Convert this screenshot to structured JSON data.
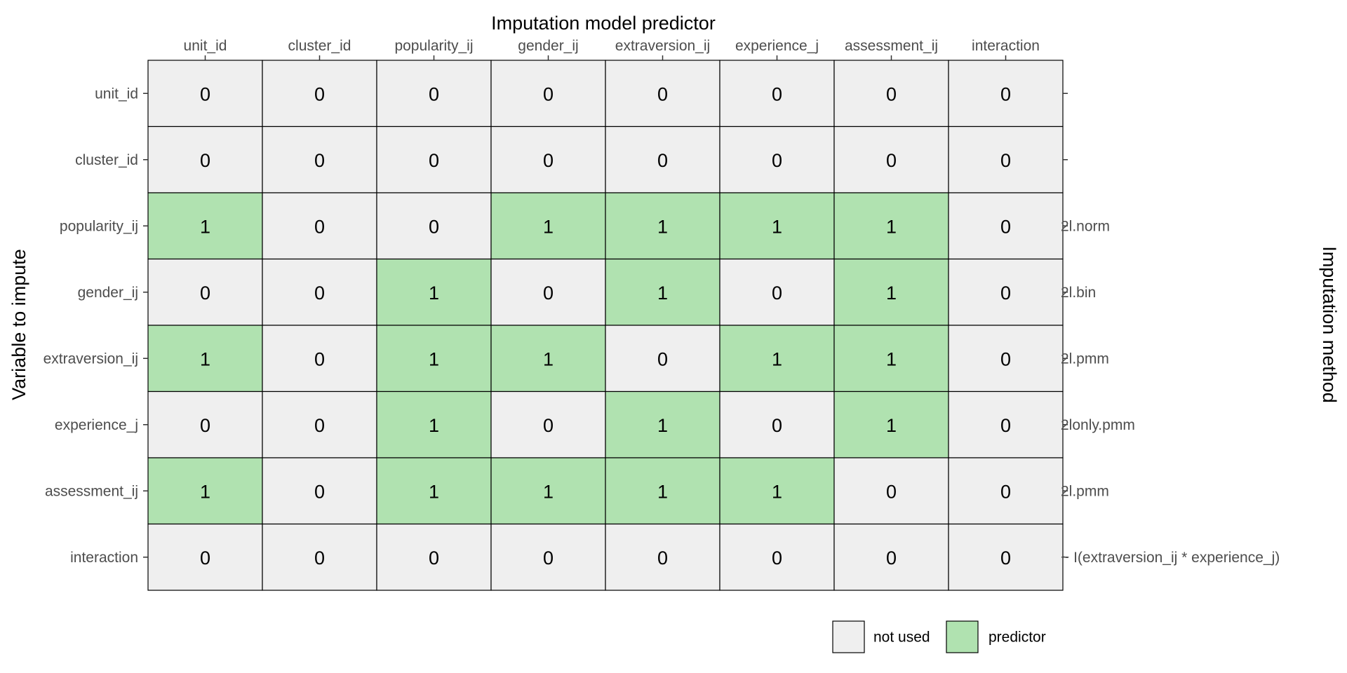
{
  "chart_data": {
    "type": "heatmap",
    "xlabel": "Imputation model predictor",
    "ylabel": "Variable to impute",
    "right_label": "Imputation method",
    "columns": [
      "unit_id",
      "cluster_id",
      "popularity_ij",
      "gender_ij",
      "extraversion_ij",
      "experience_j",
      "assessment_ij",
      "interaction"
    ],
    "rows": [
      "unit_id",
      "cluster_id",
      "popularity_ij",
      "gender_ij",
      "extraversion_ij",
      "experience_j",
      "assessment_ij",
      "interaction"
    ],
    "methods": [
      "",
      "",
      "2l.norm",
      "2l.bin",
      "2l.pmm",
      "2lonly.pmm",
      "2l.pmm",
      "~ I(extraversion_ij * experience_j)"
    ],
    "matrix": [
      [
        0,
        0,
        0,
        0,
        0,
        0,
        0,
        0
      ],
      [
        0,
        0,
        0,
        0,
        0,
        0,
        0,
        0
      ],
      [
        1,
        0,
        0,
        1,
        1,
        1,
        1,
        0
      ],
      [
        0,
        0,
        1,
        0,
        1,
        0,
        1,
        0
      ],
      [
        1,
        0,
        1,
        1,
        0,
        1,
        1,
        0
      ],
      [
        0,
        0,
        1,
        0,
        1,
        0,
        1,
        0
      ],
      [
        1,
        0,
        1,
        1,
        1,
        1,
        0,
        0
      ],
      [
        0,
        0,
        0,
        0,
        0,
        0,
        0,
        0
      ]
    ],
    "legend": [
      {
        "label": "not used",
        "value": 0,
        "color": "#efefef"
      },
      {
        "label": "predictor",
        "value": 1,
        "color": "#b0e2b0"
      }
    ],
    "legend_position": "bottom-right",
    "grid": false
  }
}
